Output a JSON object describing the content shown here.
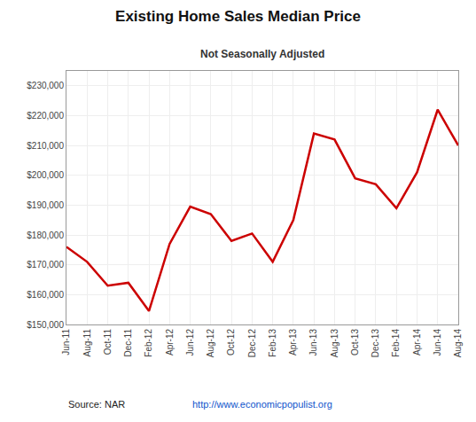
{
  "chart_data": {
    "type": "line",
    "title": "Existing Home Sales Median Price",
    "subtitle": "Not Seasonally Adjusted",
    "annotations": [
      "Source: NAR",
      "http://www.economicpopulist.org"
    ],
    "categories": [
      "Jun-11",
      "Aug-11",
      "Oct-11",
      "Dec-11",
      "Feb-12",
      "Apr-12",
      "Jun-12",
      "Aug-12",
      "Oct-12",
      "Dec-12",
      "Feb-13",
      "Apr-13",
      "Jun-13",
      "Aug-13",
      "Oct-13",
      "Dec-13",
      "Feb-14",
      "Apr-14",
      "Jun-14",
      "Aug-14"
    ],
    "values": [
      176000,
      171000,
      163000,
      164000,
      154500,
      177000,
      189500,
      187000,
      178000,
      180500,
      171000,
      185000,
      214000,
      212000,
      199000,
      197000,
      189000,
      201000,
      222000,
      210000
    ],
    "color": "#cc0000",
    "ylim": [
      150000,
      235000
    ],
    "yticks": [
      {
        "value": 150000,
        "label": "$150,000"
      },
      {
        "value": 160000,
        "label": "$160,000"
      },
      {
        "value": 170000,
        "label": "$170,000"
      },
      {
        "value": 180000,
        "label": "$180,000"
      },
      {
        "value": 190000,
        "label": "$190,000"
      },
      {
        "value": 200000,
        "label": "$200,000"
      },
      {
        "value": 210000,
        "label": "$210,000"
      },
      {
        "value": 220000,
        "label": "$220,000"
      },
      {
        "value": 230000,
        "label": "$230,000"
      }
    ],
    "grid": true
  }
}
